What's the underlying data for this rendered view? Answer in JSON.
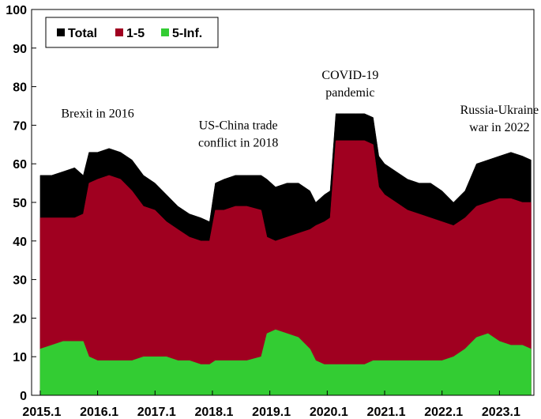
{
  "chart_data": {
    "type": "area",
    "title": "",
    "xlabel": "",
    "ylabel": "",
    "ylim": [
      0,
      100
    ],
    "yticks": [
      0,
      10,
      20,
      30,
      40,
      50,
      60,
      70,
      80,
      90,
      100
    ],
    "xlim": [
      2015.0,
      2023.6
    ],
    "xticks": [
      {
        "x": 2015.0,
        "label": "2015.1"
      },
      {
        "x": 2016.0,
        "label": "2016.1"
      },
      {
        "x": 2017.0,
        "label": "2017.1"
      },
      {
        "x": 2018.0,
        "label": "2018.1"
      },
      {
        "x": 2019.0,
        "label": "2019.1"
      },
      {
        "x": 2020.0,
        "label": "2020.1"
      },
      {
        "x": 2021.0,
        "label": "2021.1"
      },
      {
        "x": 2022.0,
        "label": "2022.1"
      },
      {
        "x": 2023.0,
        "label": "2023.1"
      }
    ],
    "grid": false,
    "legend_position": "top-left",
    "x": [
      2015.0,
      2015.2,
      2015.4,
      2015.6,
      2015.75,
      2015.85,
      2016.0,
      2016.2,
      2016.4,
      2016.6,
      2016.8,
      2017.0,
      2017.2,
      2017.4,
      2017.6,
      2017.8,
      2017.95,
      2018.05,
      2018.2,
      2018.4,
      2018.6,
      2018.85,
      2018.95,
      2019.1,
      2019.3,
      2019.5,
      2019.7,
      2019.8,
      2019.95,
      2020.05,
      2020.15,
      2020.3,
      2020.5,
      2020.65,
      2020.8,
      2020.9,
      2021.0,
      2021.2,
      2021.4,
      2021.6,
      2021.8,
      2022.0,
      2022.2,
      2022.4,
      2022.6,
      2022.8,
      2023.0,
      2023.2,
      2023.4,
      2023.55
    ],
    "series": [
      {
        "name": "Total",
        "color": "#000000",
        "values": [
          57,
          57,
          58,
          59,
          57,
          63,
          63,
          64,
          63,
          61,
          57,
          55,
          52,
          49,
          47,
          46,
          45,
          55,
          56,
          57,
          57,
          57,
          56,
          54,
          55,
          55,
          53,
          50,
          52,
          53,
          73,
          73,
          73,
          73,
          72,
          62,
          60,
          58,
          56,
          55,
          55,
          53,
          50,
          53,
          60,
          61,
          62,
          63,
          62,
          61
        ]
      },
      {
        "name": "1-5",
        "color": "#A00020",
        "values": [
          46,
          46,
          46,
          46,
          47,
          55,
          56,
          57,
          56,
          53,
          49,
          48,
          45,
          43,
          41,
          40,
          40,
          48,
          48,
          49,
          49,
          48,
          41,
          40,
          41,
          42,
          43,
          44,
          45,
          46,
          66,
          66,
          66,
          66,
          65,
          54,
          52,
          50,
          48,
          47,
          46,
          45,
          44,
          46,
          49,
          50,
          51,
          51,
          50,
          50
        ]
      },
      {
        "name": "5-Inf.",
        "color": "#33CC33",
        "values": [
          12,
          13,
          14,
          14,
          14,
          10,
          9,
          9,
          9,
          9,
          10,
          10,
          10,
          9,
          9,
          8,
          8,
          9,
          9,
          9,
          9,
          10,
          16,
          17,
          16,
          15,
          12,
          9,
          8,
          8,
          8,
          8,
          8,
          8,
          9,
          9,
          9,
          9,
          9,
          9,
          9,
          9,
          10,
          12,
          15,
          16,
          14,
          13,
          13,
          12
        ]
      }
    ],
    "annotations": [
      {
        "lines": [
          "Brexit in 2016"
        ],
        "x": 2016.0,
        "y": 72
      },
      {
        "lines": [
          "US-China trade",
          "conflict in 2018"
        ],
        "x": 2018.45,
        "y": 69
      },
      {
        "lines": [
          "COVID-19",
          "pandemic"
        ],
        "x": 2020.4,
        "y": 82
      },
      {
        "lines": [
          "Russia-Ukraine",
          "war in 2022"
        ],
        "x": 2023.0,
        "y": 73
      }
    ]
  }
}
